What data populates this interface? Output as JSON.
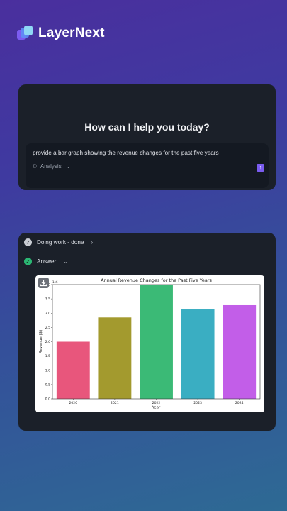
{
  "brand": {
    "name": "LayerNext"
  },
  "ask": {
    "greeting": "How can I help you today?",
    "prompt": "provide a bar graph showing the revenue changes for the past five years",
    "mode_label": "Analysis",
    "mode_icon": "analysis-icon",
    "send_icon": "arrow-up-icon"
  },
  "work": {
    "step1_label": "Doing work - done",
    "step2_label": "Answer"
  },
  "colors": {
    "accent": "#7a5cf0",
    "success": "#2bb673"
  },
  "chart_data": {
    "type": "bar",
    "title": "Annual Revenue Changes for the Past Five Years",
    "xlabel": "Year",
    "ylabel": "Revenue ($)",
    "scale_label": "1e6",
    "categories": [
      "2020",
      "2021",
      "2022",
      "2023",
      "2024"
    ],
    "values": [
      2000000,
      2850000,
      3980000,
      3130000,
      3280000
    ],
    "colors": [
      "#e8567c",
      "#a39a2e",
      "#3bba76",
      "#3aaec2",
      "#c25ee8"
    ],
    "ylim": [
      0,
      4000000
    ],
    "yticks": [
      "0.0",
      "0.5",
      "1.0",
      "1.5",
      "2.0",
      "2.5",
      "3.0",
      "3.5",
      "4.0"
    ],
    "grid": false,
    "legend": "none"
  }
}
